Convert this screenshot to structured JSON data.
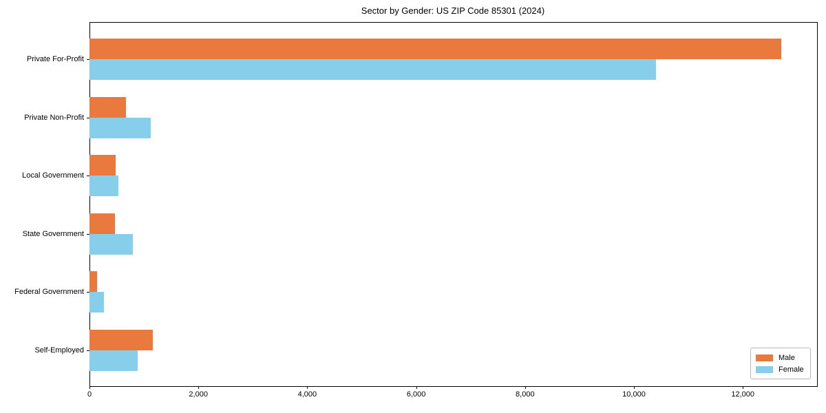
{
  "title": "Sector by Gender: US ZIP Code 85301 (2024)",
  "colors": {
    "male": "#E9793C",
    "female": "#87CEEB",
    "axis": "#000000",
    "background": "#ffffff",
    "legend_border": "#b8b8b8"
  },
  "legend": {
    "items": [
      {
        "label": "Male",
        "color_key": "male"
      },
      {
        "label": "Female",
        "color_key": "female"
      }
    ],
    "position": "lower right"
  },
  "chart_data": {
    "type": "bar",
    "orientation": "horizontal",
    "title": "Sector by Gender: US ZIP Code 85301 (2024)",
    "categories": [
      "Private For-Profit",
      "Private Non-Profit",
      "Local Government",
      "State Government",
      "Federal Government",
      "Self-Employed"
    ],
    "series": [
      {
        "name": "Male",
        "color": "#E9793C",
        "values": [
          12700,
          670,
          480,
          470,
          140,
          1160
        ]
      },
      {
        "name": "Female",
        "color": "#87CEEB",
        "values": [
          10400,
          1130,
          530,
          800,
          270,
          890
        ]
      }
    ],
    "xlabel": "",
    "ylabel": "",
    "xlim": [
      0,
      13350
    ],
    "xticks": [
      0,
      2000,
      4000,
      6000,
      8000,
      10000,
      12000
    ],
    "xtick_labels": [
      "0",
      "2,000",
      "4,000",
      "6,000",
      "8,000",
      "10,000",
      "12,000"
    ],
    "grid": false,
    "legend_position": "lower right"
  }
}
